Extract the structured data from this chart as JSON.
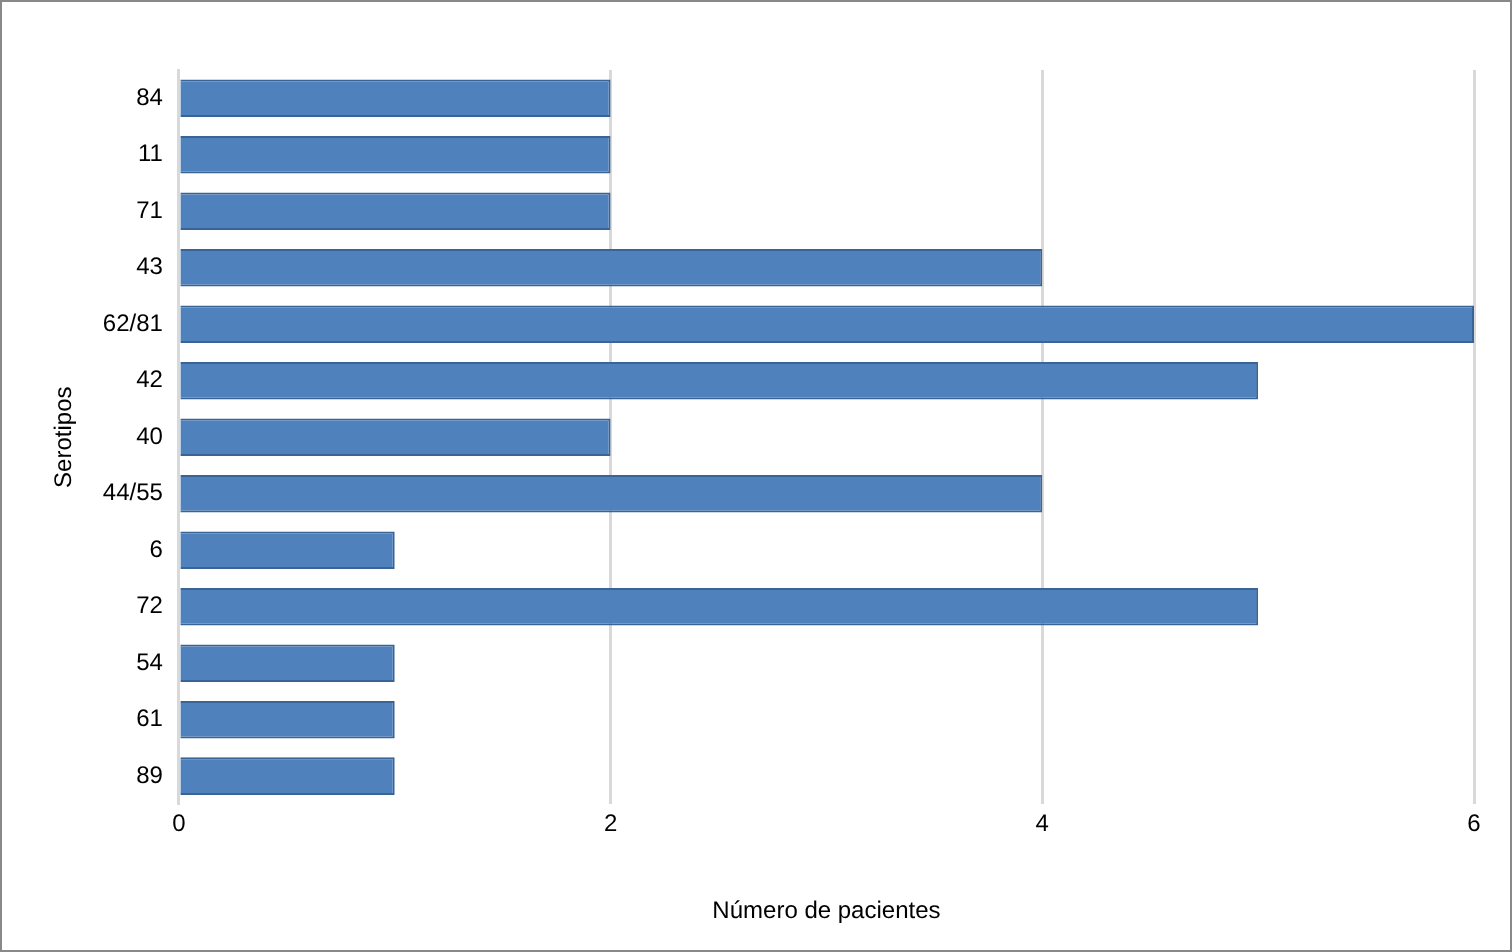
{
  "chart_data": {
    "type": "bar",
    "orientation": "horizontal",
    "xlabel": "Número de pacientes",
    "ylabel": "Serotipos",
    "categories": [
      "84",
      "11",
      "71",
      "43",
      "62/81",
      "42",
      "40",
      "44/55",
      "6",
      "72",
      "54",
      "61",
      "89"
    ],
    "values": [
      2,
      2,
      2,
      4,
      6,
      5,
      2,
      4,
      1,
      5,
      1,
      1,
      1
    ],
    "color": "#4f81bd",
    "xlim": [
      0,
      6
    ],
    "xticks": [
      0,
      2,
      4,
      6
    ],
    "grid": "x",
    "legend": false
  }
}
